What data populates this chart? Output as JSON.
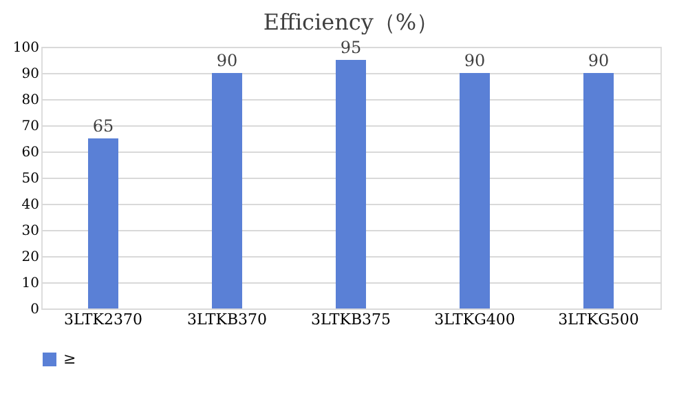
{
  "chart_data": {
    "type": "bar",
    "title": "Efficiency（%）",
    "categories": [
      "3LTK2370",
      "3LTKB370",
      "3LTKB375",
      "3LTKG400",
      "3LTKG500"
    ],
    "series": [
      {
        "name": "≥",
        "color": "#5a80d6",
        "values": [
          65,
          90,
          95,
          90,
          90
        ]
      }
    ],
    "ylim": [
      0,
      100
    ],
    "yticks": [
      0,
      10,
      20,
      30,
      40,
      50,
      60,
      70,
      80,
      90,
      100
    ],
    "grid": "y",
    "legend": "bottom",
    "data_labels": true
  }
}
